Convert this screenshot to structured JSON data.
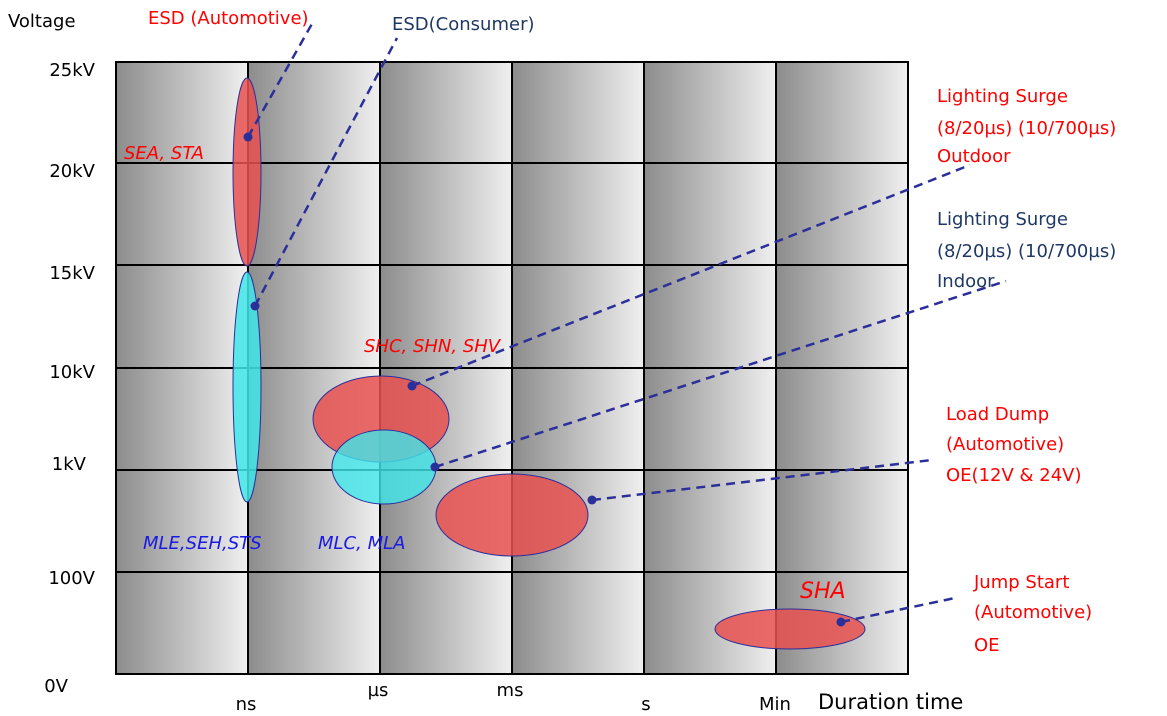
{
  "axes": {
    "y_title": "Voltage",
    "x_title": "Duration time",
    "y_ticks": [
      "25kV",
      "20kV",
      "15kV",
      "10kV",
      "1kV",
      "100V",
      "0V"
    ],
    "x_ticks": [
      "ns",
      "µs",
      "ms",
      "s",
      "Min"
    ]
  },
  "colors": {
    "red_region": "#e85050",
    "cyan_region": "#40e6ea",
    "grid_line": "#000000",
    "leader_line": "#2b2f9a",
    "red_text": "#ff0000",
    "navy_text": "#1f3864",
    "blue_text": "#1a1ae6"
  },
  "labels": {
    "esd_automotive": "ESD (Automotive)",
    "esd_consumer": "ESD(Consumer)",
    "surge_outdoor": [
      "Lighting Surge",
      "(8/20µs) (10/700µs)",
      "Outdoor"
    ],
    "surge_indoor": [
      "Lighting Surge",
      "(8/20µs) (10/700µs)",
      "Indoor"
    ],
    "load_dump": [
      "Load Dump",
      "(Automotive)",
      "OE(12V & 24V)"
    ],
    "jump_start": [
      "Jump Start",
      "(Automotive)",
      "OE"
    ]
  },
  "series_labels": {
    "sea_sta": "SEA, STA",
    "mle_seh_sts": "MLE,SEH,STS",
    "shc_shn_shv": "SHC, SHN, SHV",
    "mlc_mla": "MLC, MLA",
    "sha": "SHA"
  }
}
